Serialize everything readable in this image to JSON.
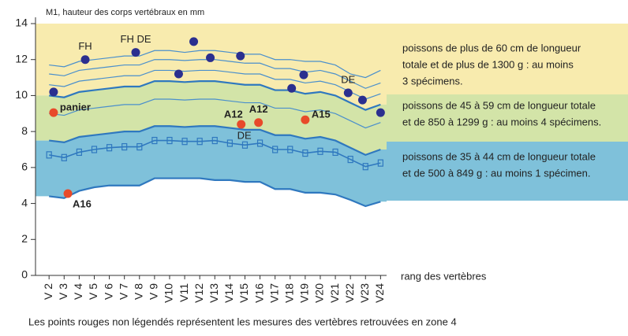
{
  "chart_data": {
    "type": "line",
    "ylabel": "M1, hauteur des corps vertébraux en mm",
    "xlabel": "rang des vertèbres",
    "footnote": "Les points rouges non légendés représentent les mesures des vertèbres retrouvées en zone 4",
    "xlim": [
      1.1,
      24.4
    ],
    "ylim": [
      0,
      14
    ],
    "yticks": [
      0,
      2,
      4,
      6,
      8,
      10,
      12,
      14
    ],
    "xticks": [
      {
        "value": 2,
        "label": "V 2"
      },
      {
        "value": 3,
        "label": "V 3"
      },
      {
        "value": 4,
        "label": "V 4"
      },
      {
        "value": 5,
        "label": "V 5"
      },
      {
        "value": 6,
        "label": "V 6"
      },
      {
        "value": 7,
        "label": "V 7"
      },
      {
        "value": 8,
        "label": "V 8"
      },
      {
        "value": 9,
        "label": "V 9"
      },
      {
        "value": 10,
        "label": "V10"
      },
      {
        "value": 11,
        "label": "V11"
      },
      {
        "value": 12,
        "label": "V12"
      },
      {
        "value": 13,
        "label": "V13"
      },
      {
        "value": 14,
        "label": "V14"
      },
      {
        "value": 15,
        "label": "V15"
      },
      {
        "value": 16,
        "label": "V16"
      },
      {
        "value": 17,
        "label": "V17"
      },
      {
        "value": 18,
        "label": "V18"
      },
      {
        "value": 19,
        "label": "V19"
      },
      {
        "value": 20,
        "label": "V20"
      },
      {
        "value": 21,
        "label": "V21"
      },
      {
        "value": 22,
        "label": "V22"
      },
      {
        "value": 23,
        "label": "V23"
      },
      {
        "value": 24,
        "label": "V24"
      }
    ],
    "x": [
      2,
      3,
      4,
      5,
      6,
      7,
      8,
      9,
      10,
      11,
      12,
      13,
      14,
      15,
      16,
      17,
      18,
      19,
      20,
      21,
      22,
      23,
      24
    ],
    "bands": [
      {
        "name": [
          "poissons de plus de 60 cm de longueur",
          "totale et de plus de 1300 g : au moins",
          "3 spécimens."
        ],
        "color": "#f8ebae"
      },
      {
        "name": [
          "poissons de 45 à 59 cm de longueur totale",
          "et de 850 à 1299 g : au moins 4 spécimens."
        ],
        "color": "#d3e4a8"
      },
      {
        "name": [
          "poissons de 35 à 44 cm de longueur totale",
          "et de 500 à 849 g : au moins 1 spécimen."
        ],
        "color": "#7fc1da"
      }
    ],
    "series": [
      {
        "color": "#4a8fcc",
        "values": [
          11.7,
          11.6,
          11.9,
          12.0,
          12.1,
          12.2,
          12.2,
          12.5,
          12.5,
          12.4,
          12.5,
          12.5,
          12.4,
          12.3,
          12.3,
          12.0,
          12.0,
          11.9,
          11.9,
          11.7,
          11.2,
          11.0,
          11.4
        ]
      },
      {
        "color": "#4a8fcc",
        "values": [
          11.2,
          11.1,
          11.4,
          11.5,
          11.6,
          11.7,
          11.7,
          12.0,
          12.0,
          11.95,
          12.0,
          12.0,
          11.9,
          11.8,
          11.8,
          11.5,
          11.5,
          11.3,
          11.4,
          11.2,
          10.8,
          10.4,
          10.7
        ]
      },
      {
        "color": "#4a8fcc",
        "values": [
          10.6,
          10.5,
          10.8,
          10.9,
          11.0,
          11.1,
          11.1,
          11.4,
          11.4,
          11.35,
          11.4,
          11.4,
          11.3,
          11.2,
          11.2,
          10.9,
          10.9,
          10.7,
          10.8,
          10.6,
          10.2,
          9.8,
          10.1
        ]
      },
      {
        "color": "#2f78bf",
        "bottom_of_band": 0,
        "values": [
          10.0,
          9.9,
          10.2,
          10.3,
          10.4,
          10.5,
          10.5,
          10.8,
          10.8,
          10.75,
          10.8,
          10.8,
          10.7,
          10.6,
          10.6,
          10.3,
          10.3,
          10.1,
          10.2,
          10.0,
          9.6,
          9.2,
          9.5
        ]
      },
      {
        "color": "#4a8fcc",
        "values": [
          9.0,
          8.9,
          9.2,
          9.3,
          9.4,
          9.5,
          9.5,
          9.8,
          9.8,
          9.75,
          9.8,
          9.8,
          9.7,
          9.6,
          9.6,
          9.3,
          9.3,
          9.1,
          9.2,
          9.0,
          8.6,
          8.2,
          8.5
        ]
      },
      {
        "color": "#2f78bf",
        "bottom_of_band": 1,
        "values": [
          7.5,
          7.4,
          7.7,
          7.8,
          7.9,
          8.0,
          8.0,
          8.3,
          8.3,
          8.25,
          8.3,
          8.3,
          8.2,
          8.1,
          8.1,
          7.8,
          7.8,
          7.6,
          7.7,
          7.5,
          7.1,
          6.7,
          7.0
        ]
      },
      {
        "color": "#2f78bf",
        "markers": true,
        "values": [
          6.7,
          6.55,
          6.85,
          7.0,
          7.1,
          7.15,
          7.15,
          7.5,
          7.5,
          7.45,
          7.45,
          7.5,
          7.35,
          7.25,
          7.35,
          7.0,
          7.0,
          6.8,
          6.9,
          6.85,
          6.45,
          6.05,
          6.25
        ]
      },
      {
        "color": "#2f78bf",
        "bottom_of_band": 2,
        "values": [
          4.4,
          4.3,
          4.7,
          4.9,
          5.0,
          5.0,
          5.0,
          5.4,
          5.4,
          5.4,
          5.4,
          5.3,
          5.3,
          5.2,
          5.2,
          4.8,
          4.8,
          4.6,
          4.6,
          4.5,
          4.2,
          3.85,
          4.1
        ]
      }
    ],
    "points": [
      {
        "x": 2.3,
        "y": 10.2,
        "color": "#2b2f8f"
      },
      {
        "x": 4.4,
        "y": 12.0,
        "color": "#2b2f8f",
        "label": "FH",
        "label_pos": "above"
      },
      {
        "x": 7.75,
        "y": 12.4,
        "color": "#2b2f8f",
        "label": "FH DE",
        "label_pos": "above"
      },
      {
        "x": 10.6,
        "y": 11.2,
        "color": "#2b2f8f"
      },
      {
        "x": 11.6,
        "y": 13.0,
        "color": "#2b2f8f"
      },
      {
        "x": 12.7,
        "y": 12.1,
        "color": "#2b2f8f"
      },
      {
        "x": 14.7,
        "y": 12.2,
        "color": "#2b2f8f"
      },
      {
        "x": 18.1,
        "y": 10.4,
        "color": "#2b2f8f"
      },
      {
        "x": 18.9,
        "y": 11.15,
        "color": "#2b2f8f"
      },
      {
        "x": 21.85,
        "y": 10.15,
        "color": "#2b2f8f",
        "label": "DE",
        "label_pos": "above"
      },
      {
        "x": 22.8,
        "y": 9.75,
        "color": "#2b2f8f"
      },
      {
        "x": 24.0,
        "y": 9.05,
        "color": "#2b2f8f"
      },
      {
        "x": 2.3,
        "y": 9.05,
        "color": "#e84a2a",
        "label": "panier",
        "label_pos": "right"
      },
      {
        "x": 3.25,
        "y": 4.55,
        "color": "#e84a2a",
        "label": "A16",
        "label_pos": "below-right"
      },
      {
        "x": 14.75,
        "y": 8.4,
        "color": "#e84a2a",
        "label": "A12",
        "label_pos": "above-left",
        "note": "DE"
      },
      {
        "x": 15.9,
        "y": 8.5,
        "color": "#e84a2a",
        "label": "A12",
        "label_pos": "above"
      },
      {
        "x": 19.0,
        "y": 8.65,
        "color": "#e84a2a",
        "label": "A15",
        "label_pos": "right"
      }
    ]
  }
}
